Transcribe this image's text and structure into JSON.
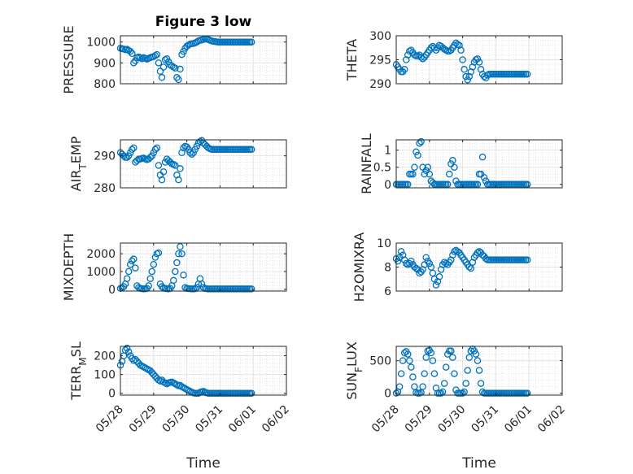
{
  "figure": {
    "title": "Figure 3 low",
    "marker_color": "#0072BD",
    "x_tick_labels": [
      "05/28",
      "05/29",
      "05/30",
      "05/31",
      "06/01",
      "06/02"
    ],
    "x_label": "Time"
  },
  "chart_data": [
    {
      "type": "scatter",
      "title": "Figure 3 low",
      "ylabel": "PRESSURE",
      "sub": null,
      "yticks": [
        800,
        900,
        1000
      ],
      "ylim": [
        800,
        1030
      ],
      "xlim": [
        0,
        5
      ],
      "grid": true,
      "x": [
        0,
        0.05,
        0.1,
        0.15,
        0.2,
        0.25,
        0.3,
        0.35,
        0.4,
        0.45,
        0.5,
        0.55,
        0.6,
        0.65,
        0.7,
        0.75,
        0.8,
        0.85,
        0.9,
        0.95,
        1,
        1.05,
        1.1,
        1.15,
        1.2,
        1.25,
        1.3,
        1.35,
        1.4,
        1.45,
        1.5,
        1.55,
        1.6,
        1.65,
        1.7,
        1.75,
        1.8,
        1.85,
        1.9,
        1.95,
        2,
        2.05,
        2.1,
        2.15,
        2.2,
        2.25,
        2.3,
        2.35,
        2.4,
        2.45,
        2.5,
        2.55,
        2.6,
        2.65,
        2.7,
        2.75,
        2.8,
        2.85,
        2.9,
        2.95,
        3,
        3.05,
        3.1,
        3.15,
        3.2,
        3.25,
        3.3,
        3.35,
        3.4,
        3.45,
        3.5,
        3.55,
        3.6,
        3.65,
        3.7,
        3.75,
        3.8,
        3.85,
        3.9,
        3.95
      ],
      "y": [
        970,
        968,
        966,
        963,
        965,
        960,
        955,
        945,
        900,
        910,
        925,
        928,
        925,
        920,
        925,
        922,
        918,
        922,
        925,
        928,
        930,
        935,
        940,
        900,
        860,
        830,
        880,
        915,
        920,
        905,
        890,
        885,
        880,
        875,
        830,
        820,
        870,
        940,
        955,
        970,
        980,
        985,
        990,
        992,
        993,
        996,
        1000,
        1005,
        1008,
        1010,
        1012,
        1015,
        1014,
        1012,
        1008,
        1005,
        1003,
        1002,
        1001,
        1000,
        1000,
        1000,
        1000,
        1000,
        1000,
        1000,
        1000,
        1000,
        1000,
        1000,
        1000,
        1000,
        1000,
        1000,
        1000,
        1000,
        1000,
        1000,
        1000,
        1000
      ]
    },
    {
      "type": "scatter",
      "title": "",
      "ylabel": "THETA",
      "sub": null,
      "yticks": [
        290,
        295,
        300
      ],
      "ylim": [
        290,
        300
      ],
      "xlim": [
        0,
        5
      ],
      "grid": true,
      "x": [
        0,
        0.05,
        0.1,
        0.15,
        0.2,
        0.25,
        0.3,
        0.35,
        0.4,
        0.45,
        0.5,
        0.55,
        0.6,
        0.65,
        0.7,
        0.75,
        0.8,
        0.85,
        0.9,
        0.95,
        1,
        1.05,
        1.1,
        1.15,
        1.2,
        1.25,
        1.3,
        1.35,
        1.4,
        1.45,
        1.5,
        1.55,
        1.6,
        1.65,
        1.7,
        1.75,
        1.8,
        1.85,
        1.9,
        1.95,
        2,
        2.05,
        2.1,
        2.15,
        2.2,
        2.25,
        2.3,
        2.35,
        2.4,
        2.45,
        2.5,
        2.55,
        2.6,
        2.65,
        2.7,
        2.75,
        2.8,
        2.85,
        2.9,
        2.95,
        3,
        3.05,
        3.1,
        3.15,
        3.2,
        3.25,
        3.3,
        3.35,
        3.4,
        3.45,
        3.5,
        3.55,
        3.6,
        3.65,
        3.7,
        3.75,
        3.8,
        3.85,
        3.9,
        3.95
      ],
      "y": [
        294,
        293.5,
        293,
        292.5,
        292.5,
        293,
        295,
        296,
        296.8,
        297,
        296.5,
        296,
        295.8,
        295.8,
        296,
        295.5,
        295.2,
        295.5,
        296,
        296.5,
        297,
        297.5,
        297.8,
        297.5,
        297,
        297.5,
        298,
        297.8,
        297.5,
        297.2,
        297,
        296.8,
        296.8,
        297,
        297.5,
        298,
        298.5,
        298.2,
        298,
        297,
        295,
        293,
        291.5,
        290.8,
        291.5,
        292.5,
        293.5,
        294.5,
        295,
        295.2,
        294.5,
        293,
        292,
        291.5,
        291.2,
        291.8,
        292,
        292,
        292,
        292,
        292,
        292,
        292,
        292,
        292,
        292,
        292,
        292,
        292,
        292,
        292,
        292,
        292,
        292,
        292,
        292,
        292,
        292,
        292,
        292
      ]
    },
    {
      "type": "scatter",
      "title": "",
      "ylabel": "AIR",
      "sub": "T",
      "ylabel_tail": "EMP",
      "yticks": [
        280,
        290
      ],
      "ylim": [
        280,
        295
      ],
      "xlim": [
        0,
        5
      ],
      "grid": true,
      "x": [
        0,
        0.05,
        0.1,
        0.15,
        0.2,
        0.25,
        0.3,
        0.35,
        0.4,
        0.45,
        0.5,
        0.55,
        0.6,
        0.65,
        0.7,
        0.75,
        0.8,
        0.85,
        0.9,
        0.95,
        1,
        1.05,
        1.1,
        1.15,
        1.2,
        1.25,
        1.3,
        1.35,
        1.4,
        1.45,
        1.5,
        1.55,
        1.6,
        1.65,
        1.7,
        1.75,
        1.8,
        1.85,
        1.9,
        1.95,
        2,
        2.05,
        2.1,
        2.15,
        2.2,
        2.25,
        2.3,
        2.35,
        2.4,
        2.45,
        2.5,
        2.55,
        2.6,
        2.65,
        2.7,
        2.75,
        2.8,
        2.85,
        2.9,
        2.95,
        3,
        3.05,
        3.1,
        3.15,
        3.2,
        3.25,
        3.3,
        3.35,
        3.4,
        3.45,
        3.5,
        3.55,
        3.6,
        3.65,
        3.7,
        3.75,
        3.8,
        3.85,
        3.9,
        3.95
      ],
      "y": [
        291,
        290.5,
        290,
        289.5,
        289.5,
        290,
        291,
        292,
        292.5,
        288,
        288.5,
        289,
        289,
        289.2,
        289.3,
        289,
        288.8,
        289,
        289.5,
        290,
        291,
        292,
        292.5,
        287,
        284,
        282.5,
        285,
        288,
        289,
        288.5,
        288,
        287.5,
        287.3,
        287,
        284,
        282.5,
        286,
        291,
        292.5,
        293,
        292.8,
        292,
        291,
        290.5,
        291,
        292,
        293,
        294,
        294.5,
        294.8,
        294,
        293.5,
        293,
        292.5,
        292.2,
        292,
        292,
        292,
        292,
        292,
        292,
        292,
        292,
        292,
        292,
        292,
        292,
        292,
        292,
        292,
        292,
        292,
        292,
        292,
        292,
        292,
        292,
        292,
        292,
        292
      ]
    },
    {
      "type": "scatter",
      "title": "",
      "ylabel": "RAINFALL",
      "sub": null,
      "yticks": [
        0,
        0.5,
        1
      ],
      "ylim": [
        -0.1,
        1.3
      ],
      "xlim": [
        0,
        5
      ],
      "grid": true,
      "x": [
        0,
        0.05,
        0.1,
        0.15,
        0.2,
        0.25,
        0.3,
        0.35,
        0.4,
        0.45,
        0.5,
        0.55,
        0.6,
        0.65,
        0.7,
        0.75,
        0.8,
        0.85,
        0.9,
        0.95,
        1,
        1.05,
        1.1,
        1.15,
        1.2,
        1.25,
        1.3,
        1.35,
        1.4,
        1.45,
        1.5,
        1.55,
        1.6,
        1.65,
        1.7,
        1.75,
        1.8,
        1.85,
        1.9,
        1.95,
        2,
        2.05,
        2.1,
        2.15,
        2.2,
        2.25,
        2.3,
        2.35,
        2.4,
        2.45,
        2.5,
        2.55,
        2.6,
        2.65,
        2.7,
        2.75,
        2.8,
        2.85,
        2.9,
        2.95,
        3,
        3.05,
        3.1,
        3.15,
        3.2,
        3.25,
        3.3,
        3.35,
        3.4,
        3.45,
        3.5,
        3.55,
        3.6,
        3.65,
        3.7,
        3.75,
        3.8,
        3.85,
        3.9,
        3.95
      ],
      "y": [
        0,
        0,
        0,
        0,
        0,
        0,
        0,
        0,
        0.3,
        0.3,
        0.3,
        0.5,
        0.95,
        0.85,
        1.2,
        1.25,
        0.5,
        0.3,
        0.4,
        0.5,
        0.3,
        0.1,
        0.05,
        0,
        0,
        0,
        0,
        0,
        0,
        0,
        0,
        0,
        0.3,
        0.6,
        0.7,
        0.5,
        0.1,
        0,
        0,
        0,
        0,
        0,
        0,
        0,
        0,
        0,
        0,
        0,
        0,
        0,
        0.3,
        0.3,
        0.8,
        0.2,
        0.1,
        0,
        0,
        0,
        0,
        0,
        0,
        0,
        0,
        0,
        0,
        0,
        0,
        0,
        0,
        0,
        0,
        0,
        0,
        0,
        0,
        0,
        0,
        0,
        0,
        0
      ]
    },
    {
      "type": "scatter",
      "title": "",
      "ylabel": "MIXDEPTH",
      "sub": null,
      "yticks": [
        0,
        1000,
        2000
      ],
      "ylim": [
        -100,
        2600
      ],
      "xlim": [
        0,
        5
      ],
      "grid": true,
      "x": [
        0,
        0.05,
        0.1,
        0.15,
        0.2,
        0.25,
        0.3,
        0.35,
        0.4,
        0.45,
        0.5,
        0.55,
        0.6,
        0.65,
        0.7,
        0.75,
        0.8,
        0.85,
        0.9,
        0.95,
        1,
        1.05,
        1.1,
        1.15,
        1.2,
        1.25,
        1.3,
        1.35,
        1.4,
        1.45,
        1.5,
        1.55,
        1.6,
        1.65,
        1.7,
        1.75,
        1.8,
        1.85,
        1.9,
        1.95,
        2,
        2.05,
        2.1,
        2.15,
        2.2,
        2.25,
        2.3,
        2.35,
        2.4,
        2.45,
        2.5,
        2.55,
        2.6,
        2.65,
        2.7,
        2.75,
        2.8,
        2.85,
        2.9,
        2.95,
        3,
        3.05,
        3.1,
        3.15,
        3.2,
        3.25,
        3.3,
        3.35,
        3.4,
        3.45,
        3.5,
        3.55,
        3.6,
        3.65,
        3.7,
        3.75,
        3.8,
        3.85,
        3.9,
        3.95
      ],
      "y": [
        50,
        80,
        150,
        300,
        600,
        1000,
        1400,
        1600,
        1700,
        1200,
        200,
        100,
        50,
        30,
        20,
        30,
        50,
        200,
        600,
        1000,
        1400,
        1800,
        2000,
        2050,
        300,
        150,
        80,
        50,
        30,
        20,
        50,
        200,
        500,
        1000,
        1500,
        2000,
        2400,
        2000,
        800,
        100,
        50,
        40,
        30,
        20,
        20,
        30,
        100,
        300,
        600,
        300,
        100,
        50,
        30,
        20,
        20,
        20,
        20,
        20,
        20,
        20,
        20,
        20,
        20,
        20,
        20,
        20,
        20,
        20,
        20,
        20,
        20,
        20,
        20,
        20,
        20,
        20,
        20,
        20,
        20,
        20
      ]
    },
    {
      "type": "scatter",
      "title": "",
      "ylabel": "H2OMIXRA",
      "sub": null,
      "yticks": [
        6,
        8,
        10
      ],
      "ylim": [
        6,
        10
      ],
      "xlim": [
        0,
        5
      ],
      "grid": true,
      "x": [
        0,
        0.05,
        0.1,
        0.15,
        0.2,
        0.25,
        0.3,
        0.35,
        0.4,
        0.45,
        0.5,
        0.55,
        0.6,
        0.65,
        0.7,
        0.75,
        0.8,
        0.85,
        0.9,
        0.95,
        1,
        1.05,
        1.1,
        1.15,
        1.2,
        1.25,
        1.3,
        1.35,
        1.4,
        1.45,
        1.5,
        1.55,
        1.6,
        1.65,
        1.7,
        1.75,
        1.8,
        1.85,
        1.9,
        1.95,
        2,
        2.05,
        2.1,
        2.15,
        2.2,
        2.25,
        2.3,
        2.35,
        2.4,
        2.45,
        2.5,
        2.55,
        2.6,
        2.65,
        2.7,
        2.75,
        2.8,
        2.85,
        2.9,
        2.95,
        3,
        3.05,
        3.1,
        3.15,
        3.2,
        3.25,
        3.3,
        3.35,
        3.4,
        3.45,
        3.5,
        3.55,
        3.6,
        3.65,
        3.7,
        3.75,
        3.8,
        3.85,
        3.9,
        3.95
      ],
      "y": [
        8.7,
        8.5,
        8.8,
        9.3,
        9.0,
        8.6,
        8.3,
        8.2,
        8.3,
        8.5,
        8.2,
        8.0,
        7.9,
        7.8,
        7.5,
        7.6,
        7.8,
        8.2,
        8.8,
        8.5,
        8.3,
        8.0,
        7.5,
        7.0,
        6.5,
        6.8,
        7.2,
        7.8,
        8.2,
        8.4,
        8.3,
        8.2,
        8.4,
        8.6,
        9.0,
        9.3,
        9.4,
        9.3,
        9.2,
        9.0,
        8.8,
        8.6,
        8.4,
        8.2,
        8.0,
        7.9,
        8.4,
        8.8,
        9.0,
        9.2,
        9.3,
        9.2,
        9.0,
        8.9,
        8.7,
        8.6,
        8.6,
        8.6,
        8.6,
        8.6,
        8.6,
        8.6,
        8.6,
        8.6,
        8.6,
        8.6,
        8.6,
        8.6,
        8.6,
        8.6,
        8.6,
        8.6,
        8.6,
        8.6,
        8.6,
        8.6,
        8.6,
        8.6,
        8.6,
        8.6
      ]
    },
    {
      "type": "scatter",
      "title": "",
      "ylabel": "TERR",
      "sub": "M",
      "ylabel_tail": "SL",
      "yticks": [
        0,
        100,
        200
      ],
      "ylim": [
        -10,
        250
      ],
      "xlim": [
        0,
        5
      ],
      "grid": true,
      "x": [
        0,
        0.05,
        0.1,
        0.15,
        0.2,
        0.25,
        0.3,
        0.35,
        0.4,
        0.45,
        0.5,
        0.55,
        0.6,
        0.65,
        0.7,
        0.75,
        0.8,
        0.85,
        0.9,
        0.95,
        1,
        1.05,
        1.1,
        1.15,
        1.2,
        1.25,
        1.3,
        1.35,
        1.4,
        1.45,
        1.5,
        1.55,
        1.6,
        1.65,
        1.7,
        1.75,
        1.8,
        1.85,
        1.9,
        1.95,
        2,
        2.05,
        2.1,
        2.15,
        2.2,
        2.25,
        2.3,
        2.35,
        2.4,
        2.45,
        2.5,
        2.55,
        2.6,
        2.65,
        2.7,
        2.75,
        2.8,
        2.85,
        2.9,
        2.95,
        3,
        3.05,
        3.1,
        3.15,
        3.2,
        3.25,
        3.3,
        3.35,
        3.4,
        3.45,
        3.5,
        3.55,
        3.6,
        3.65,
        3.7,
        3.75,
        3.8,
        3.85,
        3.9,
        3.95
      ],
      "y": [
        150,
        170,
        200,
        230,
        240,
        220,
        200,
        185,
        175,
        180,
        170,
        160,
        150,
        145,
        140,
        135,
        130,
        125,
        120,
        110,
        100,
        90,
        80,
        70,
        65,
        70,
        60,
        55,
        50,
        55,
        58,
        60,
        55,
        50,
        45,
        40,
        42,
        35,
        30,
        25,
        20,
        15,
        10,
        5,
        2,
        0,
        0,
        0,
        5,
        8,
        10,
        5,
        2,
        0,
        0,
        0,
        0,
        0,
        0,
        0,
        0,
        0,
        0,
        0,
        0,
        0,
        0,
        0,
        0,
        0,
        0,
        0,
        0,
        0,
        0,
        0,
        0,
        0,
        0,
        0
      ]
    },
    {
      "type": "scatter",
      "title": "",
      "ylabel": "SUN",
      "sub": "F",
      "ylabel_tail": "LUX",
      "yticks": [
        0,
        500
      ],
      "ylim": [
        -30,
        720
      ],
      "xlim": [
        0,
        5
      ],
      "grid": true,
      "x": [
        0,
        0.05,
        0.1,
        0.15,
        0.2,
        0.25,
        0.3,
        0.35,
        0.4,
        0.45,
        0.5,
        0.55,
        0.6,
        0.65,
        0.7,
        0.75,
        0.8,
        0.85,
        0.9,
        0.95,
        1,
        1.05,
        1.1,
        1.15,
        1.2,
        1.25,
        1.3,
        1.35,
        1.4,
        1.45,
        1.5,
        1.55,
        1.6,
        1.65,
        1.7,
        1.75,
        1.8,
        1.85,
        1.9,
        1.95,
        2,
        2.05,
        2.1,
        2.15,
        2.2,
        2.25,
        2.3,
        2.35,
        2.4,
        2.45,
        2.5,
        2.55,
        2.6,
        2.65,
        2.7,
        2.75,
        2.8,
        2.85,
        2.9,
        2.95,
        3,
        3.05,
        3.1,
        3.15,
        3.2,
        3.25,
        3.3,
        3.35,
        3.4,
        3.45,
        3.5,
        3.55,
        3.6,
        3.65,
        3.7,
        3.75,
        3.8,
        3.85,
        3.9,
        3.95
      ],
      "y": [
        0,
        20,
        100,
        300,
        500,
        620,
        640,
        600,
        500,
        400,
        250,
        100,
        10,
        0,
        0,
        10,
        100,
        300,
        550,
        650,
        660,
        620,
        500,
        300,
        80,
        0,
        0,
        0,
        20,
        150,
        400,
        600,
        650,
        650,
        550,
        300,
        50,
        0,
        0,
        0,
        0,
        20,
        150,
        350,
        550,
        650,
        680,
        650,
        600,
        500,
        350,
        150,
        20,
        0,
        0,
        0,
        0,
        0,
        0,
        0,
        0,
        0,
        0,
        0,
        0,
        0,
        0,
        0,
        0,
        0,
        0,
        0,
        0,
        0,
        0,
        0,
        0,
        0,
        0,
        0
      ]
    }
  ]
}
